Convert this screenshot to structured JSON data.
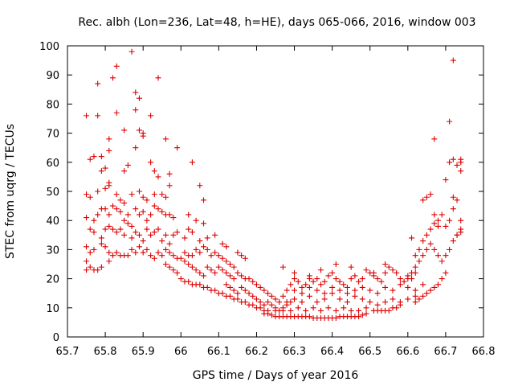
{
  "chart_data": {
    "type": "scatter",
    "title": "Rec. albh (Lon=236, Lat=48, h=HE), days 065-066, 2016, window 003",
    "xlabel": "GPS time / Days of year 2016",
    "ylabel": "STEC from uqrg / TECUs",
    "xlim": [
      65.7,
      66.8
    ],
    "ylim": [
      0,
      100
    ],
    "xticks": [
      "65.7",
      "65.8",
      "65.9",
      "66",
      "66.1",
      "66.2",
      "66.3",
      "66.4",
      "66.5",
      "66.6",
      "66.7",
      "66.8"
    ],
    "yticks": [
      "0",
      "10",
      "20",
      "30",
      "40",
      "50",
      "60",
      "70",
      "80",
      "90",
      "100"
    ],
    "grid": false,
    "legend": "none",
    "marker": "plus",
    "colors": {
      "points": "#dd0000",
      "axes": "#000000"
    },
    "points": [
      [
        65.75,
        76
      ],
      [
        65.78,
        76
      ],
      [
        65.78,
        87
      ],
      [
        65.82,
        89
      ],
      [
        65.83,
        93
      ],
      [
        65.87,
        98
      ],
      [
        65.88,
        84
      ],
      [
        65.89,
        82
      ],
      [
        65.88,
        78
      ],
      [
        65.85,
        71
      ],
      [
        65.9,
        70
      ],
      [
        65.94,
        89
      ],
      [
        65.92,
        76
      ],
      [
        65.96,
        68
      ],
      [
        65.99,
        65
      ],
      [
        65.83,
        77
      ],
      [
        65.76,
        61
      ],
      [
        65.77,
        62
      ],
      [
        65.79,
        62
      ],
      [
        65.79,
        57
      ],
      [
        65.8,
        58
      ],
      [
        65.81,
        64
      ],
      [
        65.81,
        68
      ],
      [
        65.85,
        57
      ],
      [
        65.86,
        59
      ],
      [
        65.88,
        65
      ],
      [
        65.89,
        71
      ],
      [
        65.9,
        69
      ],
      [
        65.92,
        60
      ],
      [
        65.93,
        57
      ],
      [
        65.94,
        55
      ],
      [
        65.97,
        56
      ],
      [
        66.05,
        52
      ],
      [
        66.03,
        60
      ],
      [
        66.06,
        47
      ],
      [
        65.75,
        49
      ],
      [
        65.76,
        48
      ],
      [
        65.78,
        50
      ],
      [
        65.8,
        51
      ],
      [
        65.81,
        53
      ],
      [
        65.81,
        52
      ],
      [
        65.83,
        49
      ],
      [
        65.84,
        47
      ],
      [
        65.85,
        46
      ],
      [
        65.87,
        49
      ],
      [
        65.89,
        50
      ],
      [
        65.9,
        48
      ],
      [
        65.91,
        47
      ],
      [
        65.93,
        49
      ],
      [
        65.95,
        49
      ],
      [
        65.96,
        48
      ],
      [
        65.97,
        52
      ],
      [
        65.75,
        41
      ],
      [
        65.77,
        40
      ],
      [
        65.78,
        42
      ],
      [
        65.79,
        44
      ],
      [
        65.8,
        44
      ],
      [
        65.81,
        42
      ],
      [
        65.82,
        45
      ],
      [
        65.83,
        44
      ],
      [
        65.84,
        43
      ],
      [
        65.85,
        40
      ],
      [
        65.86,
        42
      ],
      [
        65.87,
        38
      ],
      [
        65.88,
        44
      ],
      [
        65.89,
        42
      ],
      [
        65.9,
        43
      ],
      [
        65.91,
        40
      ],
      [
        65.92,
        42
      ],
      [
        65.93,
        45
      ],
      [
        65.94,
        44
      ],
      [
        65.95,
        43
      ],
      [
        65.96,
        42
      ],
      [
        65.97,
        42
      ],
      [
        65.98,
        41
      ],
      [
        66.02,
        42
      ],
      [
        66.04,
        40
      ],
      [
        66.06,
        39
      ],
      [
        65.76,
        37
      ],
      [
        65.77,
        36
      ],
      [
        65.79,
        34
      ],
      [
        65.8,
        37
      ],
      [
        65.81,
        38
      ],
      [
        65.82,
        37
      ],
      [
        65.83,
        36
      ],
      [
        65.84,
        37
      ],
      [
        65.85,
        35
      ],
      [
        65.86,
        39
      ],
      [
        65.87,
        34
      ],
      [
        65.88,
        36
      ],
      [
        65.89,
        35
      ],
      [
        65.9,
        33
      ],
      [
        65.91,
        37
      ],
      [
        65.92,
        35
      ],
      [
        65.93,
        36
      ],
      [
        65.94,
        37
      ],
      [
        65.95,
        33
      ],
      [
        65.96,
        35
      ],
      [
        65.97,
        32
      ],
      [
        65.98,
        35
      ],
      [
        65.99,
        36
      ],
      [
        66.01,
        34
      ],
      [
        66.02,
        37
      ],
      [
        66.03,
        36
      ],
      [
        66.05,
        33
      ],
      [
        66.07,
        34
      ],
      [
        66.09,
        35
      ],
      [
        66.11,
        32
      ],
      [
        66.12,
        31
      ],
      [
        65.75,
        31
      ],
      [
        65.76,
        29
      ],
      [
        65.77,
        30
      ],
      [
        65.79,
        32
      ],
      [
        65.8,
        31
      ],
      [
        65.81,
        29
      ],
      [
        65.82,
        28
      ],
      [
        65.83,
        29
      ],
      [
        65.84,
        28
      ],
      [
        65.85,
        28
      ],
      [
        65.86,
        28
      ],
      [
        65.87,
        30
      ],
      [
        65.88,
        29
      ],
      [
        65.89,
        31
      ],
      [
        65.9,
        29
      ],
      [
        65.91,
        30
      ],
      [
        65.92,
        28
      ],
      [
        65.93,
        27
      ],
      [
        65.94,
        29
      ],
      [
        65.95,
        28
      ],
      [
        65.96,
        30
      ],
      [
        65.97,
        29
      ],
      [
        65.98,
        28
      ],
      [
        65.99,
        27
      ],
      [
        66.01,
        29
      ],
      [
        66.02,
        28
      ],
      [
        66.03,
        28
      ],
      [
        66.04,
        30
      ],
      [
        66.05,
        29
      ],
      [
        66.06,
        31
      ],
      [
        66.07,
        30
      ],
      [
        66.08,
        28
      ],
      [
        66.09,
        29
      ],
      [
        66.1,
        28
      ],
      [
        66.11,
        27
      ],
      [
        66.12,
        26
      ],
      [
        66.13,
        25
      ],
      [
        66.14,
        24
      ],
      [
        66.15,
        29
      ],
      [
        66.16,
        28
      ],
      [
        66.17,
        27
      ],
      [
        65.75,
        26
      ],
      [
        65.76,
        24
      ],
      [
        65.77,
        23
      ],
      [
        65.78,
        23
      ],
      [
        65.79,
        24
      ],
      [
        65.81,
        26
      ],
      [
        65.75,
        23
      ],
      [
        65.96,
        25
      ],
      [
        65.97,
        24
      ],
      [
        65.98,
        23
      ],
      [
        65.99,
        22
      ],
      [
        66.0,
        27
      ],
      [
        66.01,
        26
      ],
      [
        66.02,
        25
      ],
      [
        66.03,
        24
      ],
      [
        66.04,
        23
      ],
      [
        66.05,
        22
      ],
      [
        66.06,
        21
      ],
      [
        66.07,
        24
      ],
      [
        66.08,
        23
      ],
      [
        66.09,
        22
      ],
      [
        66.1,
        24
      ],
      [
        66.11,
        23
      ],
      [
        66.12,
        22
      ],
      [
        66.13,
        21
      ],
      [
        66.14,
        20
      ],
      [
        66.15,
        22
      ],
      [
        66.16,
        21
      ],
      [
        66.17,
        20
      ],
      [
        66.0,
        20
      ],
      [
        66.01,
        19
      ],
      [
        66.02,
        19
      ],
      [
        66.03,
        18
      ],
      [
        66.04,
        18
      ],
      [
        66.05,
        18
      ],
      [
        66.06,
        17
      ],
      [
        66.07,
        17
      ],
      [
        66.08,
        16
      ],
      [
        66.09,
        16
      ],
      [
        66.1,
        15
      ],
      [
        66.11,
        15
      ],
      [
        66.12,
        14
      ],
      [
        66.13,
        14
      ],
      [
        66.14,
        13
      ],
      [
        66.15,
        13
      ],
      [
        66.16,
        12
      ],
      [
        66.17,
        12
      ],
      [
        66.18,
        11
      ],
      [
        66.19,
        11
      ],
      [
        66.2,
        10
      ],
      [
        66.21,
        10
      ],
      [
        66.22,
        9
      ],
      [
        66.23,
        9
      ],
      [
        66.12,
        18
      ],
      [
        66.13,
        17
      ],
      [
        66.14,
        16
      ],
      [
        66.15,
        15
      ],
      [
        66.16,
        17
      ],
      [
        66.17,
        16
      ],
      [
        66.18,
        15
      ],
      [
        66.19,
        14
      ],
      [
        66.2,
        13
      ],
      [
        66.21,
        12
      ],
      [
        66.22,
        11
      ],
      [
        66.23,
        12
      ],
      [
        66.24,
        11
      ],
      [
        66.25,
        10
      ],
      [
        66.26,
        9
      ],
      [
        66.27,
        10
      ],
      [
        66.28,
        11
      ],
      [
        66.29,
        12
      ],
      [
        66.18,
        20
      ],
      [
        66.19,
        19
      ],
      [
        66.2,
        18
      ],
      [
        66.21,
        17
      ],
      [
        66.22,
        16
      ],
      [
        66.23,
        15
      ],
      [
        66.24,
        14
      ],
      [
        66.25,
        13
      ],
      [
        66.26,
        12
      ],
      [
        66.27,
        14
      ],
      [
        66.28,
        16
      ],
      [
        66.29,
        18
      ],
      [
        66.3,
        20
      ],
      [
        66.31,
        19
      ],
      [
        66.32,
        17
      ],
      [
        66.33,
        18
      ],
      [
        66.34,
        21
      ],
      [
        66.35,
        19
      ],
      [
        66.36,
        20
      ],
      [
        66.37,
        18
      ],
      [
        66.38,
        19
      ],
      [
        66.39,
        21
      ],
      [
        66.4,
        22
      ],
      [
        66.41,
        20
      ],
      [
        66.42,
        19
      ],
      [
        66.43,
        18
      ],
      [
        66.44,
        17
      ],
      [
        66.45,
        20
      ],
      [
        66.46,
        21
      ],
      [
        66.47,
        19
      ],
      [
        66.48,
        20
      ],
      [
        66.49,
        23
      ],
      [
        66.5,
        22
      ],
      [
        66.51,
        21
      ],
      [
        66.52,
        20
      ],
      [
        66.53,
        19
      ],
      [
        66.54,
        22
      ],
      [
        66.55,
        24
      ],
      [
        66.56,
        23
      ],
      [
        66.57,
        22
      ],
      [
        66.58,
        20
      ],
      [
        66.59,
        19
      ],
      [
        66.6,
        21
      ],
      [
        66.61,
        20
      ],
      [
        66.62,
        22
      ],
      [
        66.22,
        8
      ],
      [
        66.23,
        8
      ],
      [
        66.24,
        7.5
      ],
      [
        66.25,
        7
      ],
      [
        66.26,
        7
      ],
      [
        66.27,
        7
      ],
      [
        66.28,
        7
      ],
      [
        66.29,
        7
      ],
      [
        66.3,
        7
      ],
      [
        66.31,
        7
      ],
      [
        66.32,
        7
      ],
      [
        66.33,
        7
      ],
      [
        66.34,
        7
      ],
      [
        66.35,
        6.5
      ],
      [
        66.36,
        6.5
      ],
      [
        66.37,
        6.5
      ],
      [
        66.38,
        6.5
      ],
      [
        66.39,
        6.5
      ],
      [
        66.4,
        6.5
      ],
      [
        66.41,
        6.5
      ],
      [
        66.42,
        7
      ],
      [
        66.43,
        7
      ],
      [
        66.44,
        7
      ],
      [
        66.45,
        7
      ],
      [
        66.46,
        7
      ],
      [
        66.47,
        7
      ],
      [
        66.48,
        7.5
      ],
      [
        66.49,
        8
      ],
      [
        66.25,
        9
      ],
      [
        66.27,
        9
      ],
      [
        66.29,
        9
      ],
      [
        66.31,
        10
      ],
      [
        66.33,
        9
      ],
      [
        66.35,
        10
      ],
      [
        66.37,
        9
      ],
      [
        66.39,
        10
      ],
      [
        66.41,
        9
      ],
      [
        66.43,
        10
      ],
      [
        66.45,
        9
      ],
      [
        66.47,
        9
      ],
      [
        66.49,
        10
      ],
      [
        66.51,
        9
      ],
      [
        66.52,
        9
      ],
      [
        66.53,
        9
      ],
      [
        66.54,
        9
      ],
      [
        66.55,
        9
      ],
      [
        66.56,
        10
      ],
      [
        66.57,
        10
      ],
      [
        66.58,
        11
      ],
      [
        66.28,
        12
      ],
      [
        66.3,
        13
      ],
      [
        66.32,
        12
      ],
      [
        66.34,
        14
      ],
      [
        66.36,
        12
      ],
      [
        66.38,
        13
      ],
      [
        66.4,
        15
      ],
      [
        66.42,
        13
      ],
      [
        66.44,
        12
      ],
      [
        66.46,
        14
      ],
      [
        66.48,
        13
      ],
      [
        66.5,
        12
      ],
      [
        66.52,
        11
      ],
      [
        66.54,
        12
      ],
      [
        66.56,
        13
      ],
      [
        66.58,
        12
      ],
      [
        66.6,
        13
      ],
      [
        66.62,
        14
      ],
      [
        66.3,
        16
      ],
      [
        66.32,
        15
      ],
      [
        66.34,
        17
      ],
      [
        66.36,
        16
      ],
      [
        66.38,
        15
      ],
      [
        66.4,
        17
      ],
      [
        66.41,
        25
      ],
      [
        66.42,
        16
      ],
      [
        66.44,
        15
      ],
      [
        66.46,
        16
      ],
      [
        66.48,
        17
      ],
      [
        66.5,
        16
      ],
      [
        66.52,
        15
      ],
      [
        66.54,
        17
      ],
      [
        66.56,
        16
      ],
      [
        66.58,
        18
      ],
      [
        66.6,
        17
      ],
      [
        66.62,
        16
      ],
      [
        66.64,
        18
      ],
      [
        66.27,
        24
      ],
      [
        66.3,
        22
      ],
      [
        66.34,
        20
      ],
      [
        66.37,
        23
      ],
      [
        66.45,
        24
      ],
      [
        66.51,
        22
      ],
      [
        66.54,
        25
      ],
      [
        66.6,
        20
      ],
      [
        66.61,
        22
      ],
      [
        66.62,
        24
      ],
      [
        66.63,
        26
      ],
      [
        66.64,
        28
      ],
      [
        66.65,
        30
      ],
      [
        66.66,
        32
      ],
      [
        66.67,
        30
      ],
      [
        66.68,
        28
      ],
      [
        66.69,
        26
      ],
      [
        66.7,
        28
      ],
      [
        66.71,
        30
      ],
      [
        66.72,
        33
      ],
      [
        66.73,
        35
      ],
      [
        66.74,
        37
      ],
      [
        66.62,
        28
      ],
      [
        66.63,
        30
      ],
      [
        66.64,
        33
      ],
      [
        66.65,
        35
      ],
      [
        66.66,
        37
      ],
      [
        66.67,
        39
      ],
      [
        66.68,
        40
      ],
      [
        66.69,
        42
      ],
      [
        66.7,
        38
      ],
      [
        66.71,
        40
      ],
      [
        66.72,
        44
      ],
      [
        66.73,
        47
      ],
      [
        66.74,
        40
      ],
      [
        66.61,
        34
      ],
      [
        66.64,
        47
      ],
      [
        66.65,
        48
      ],
      [
        66.66,
        49
      ],
      [
        66.67,
        42
      ],
      [
        66.68,
        38
      ],
      [
        66.7,
        54
      ],
      [
        66.71,
        60
      ],
      [
        66.72,
        61
      ],
      [
        66.73,
        59
      ],
      [
        66.74,
        57
      ],
      [
        66.74,
        60
      ],
      [
        66.67,
        68
      ],
      [
        66.71,
        74
      ],
      [
        66.72,
        95
      ],
      [
        66.72,
        48
      ],
      [
        66.74,
        61
      ],
      [
        66.73,
        35
      ],
      [
        66.74,
        36
      ],
      [
        66.7,
        22
      ],
      [
        66.69,
        20
      ],
      [
        66.68,
        18
      ],
      [
        66.67,
        17
      ],
      [
        66.66,
        16
      ],
      [
        66.65,
        15
      ],
      [
        66.64,
        14
      ],
      [
        66.63,
        13
      ],
      [
        66.62,
        12
      ]
    ]
  }
}
